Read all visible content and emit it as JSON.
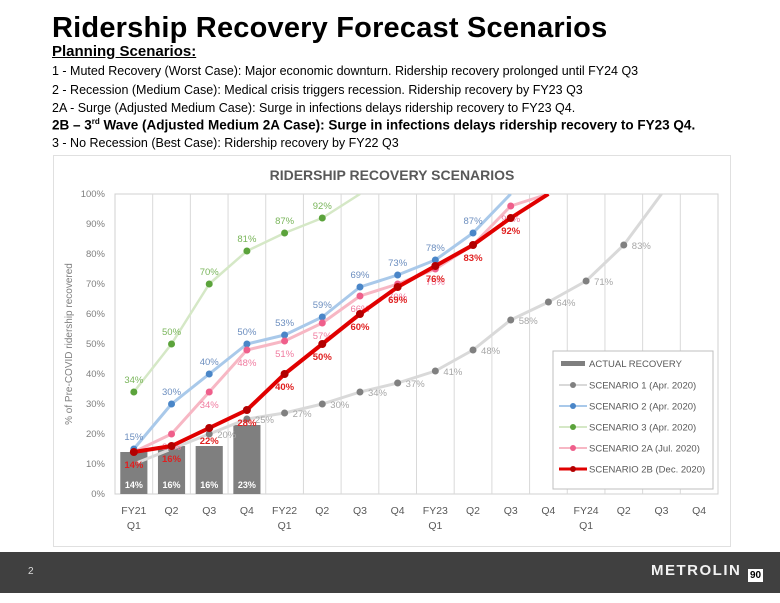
{
  "page": {
    "title": "Ridership Recovery Forecast Scenarios",
    "subtitle": "Planning Scenarios:",
    "scenarios": [
      {
        "text": "1 - Muted Recovery (Worst Case): Major economic downturn. Ridership recovery prolonged until FY24 Q3",
        "bold": false
      },
      {
        "text": "2 - Recession (Medium Case): Medical crisis triggers recession. Ridership recovery by FY23 Q3",
        "bold": false
      },
      {
        "text": "2A - Surge (Adjusted Medium Case): Surge in infections delays ridership recovery to FY23 Q4.",
        "bold": false
      },
      {
        "prefix": "2B – 3",
        "sup": "rd",
        "rest": " Wave (Adjusted Medium 2A Case): Surge in infections delays ridership recovery to FY23 Q4.",
        "bold": true
      },
      {
        "text": "3 - No Recession (Best Case): Ridership recovery by FY22 Q3",
        "bold": false
      }
    ],
    "footer": {
      "page_number": "2",
      "logo_text": "METROLIN",
      "logo_badge": "90"
    }
  },
  "chart_data": {
    "type": "line",
    "title": "RIDERSHIP RECOVERY SCENARIOS",
    "xlabel": "",
    "ylabel": "% of Pre-COVID ridership recovered",
    "ylim": [
      0,
      100
    ],
    "yticks": [
      "0%",
      "10%",
      "20%",
      "30%",
      "40%",
      "50%",
      "60%",
      "70%",
      "80%",
      "90%",
      "100%"
    ],
    "grid": "vertical",
    "legend_position": "bottom-right",
    "categories": [
      [
        "FY21",
        "Q1"
      ],
      [
        "Q2"
      ],
      [
        "Q3"
      ],
      [
        "Q4"
      ],
      [
        "FY22",
        "Q1"
      ],
      [
        "Q2"
      ],
      [
        "Q3"
      ],
      [
        "Q4"
      ],
      [
        "FY23",
        "Q1"
      ],
      [
        "Q2"
      ],
      [
        "Q3"
      ],
      [
        "Q4"
      ],
      [
        "FY24",
        "Q1"
      ],
      [
        "Q2"
      ],
      [
        "Q3"
      ],
      [
        "Q4"
      ]
    ],
    "bars": {
      "name": "ACTUAL RECOVERY",
      "color": "#7f7f7f",
      "values": [
        14,
        16,
        16,
        23
      ],
      "labels": [
        "14%",
        "16%",
        "16%",
        "23%"
      ]
    },
    "series": [
      {
        "name": "SCENARIO 1 (Apr. 2020)",
        "line_color": "#d9d9d9",
        "marker_color": "#808080",
        "label_color": "#a6a6a6",
        "width": 2,
        "values": [
          10,
          15,
          20,
          25,
          27,
          30,
          34,
          37,
          41,
          48,
          58,
          64,
          71,
          83,
          100,
          null
        ],
        "labels": [
          null,
          null,
          "20%",
          "25%",
          "27%",
          "30%",
          "34%",
          "37%",
          "41%",
          "48%",
          "58%",
          "64%",
          "71%",
          "83%",
          null,
          null
        ],
        "label_pos": "right"
      },
      {
        "name": "SCENARIO 2 (Apr. 2020)",
        "line_color": "#a9c9ea",
        "marker_color": "#4a86c8",
        "label_color": "#6c8ebf",
        "width": 2,
        "values": [
          15,
          30,
          40,
          50,
          53,
          59,
          69,
          73,
          78,
          87,
          100,
          null,
          null,
          null,
          null,
          null
        ],
        "labels": [
          "15%",
          "30%",
          "40%",
          "50%",
          "53%",
          "59%",
          "69%",
          "73%",
          "78%",
          "87%",
          null,
          null,
          null,
          null,
          null,
          null
        ],
        "label_pos": "above"
      },
      {
        "name": "SCENARIO 3 (Apr. 2020)",
        "line_color": "#d5e8c6",
        "marker_color": "#5ba33b",
        "label_color": "#79b55a",
        "width": 1.5,
        "values": [
          34,
          50,
          70,
          81,
          87,
          92,
          100,
          null,
          null,
          null,
          null,
          null,
          null,
          null,
          null,
          null
        ],
        "labels": [
          "34%",
          "50%",
          "70%",
          "81%",
          "87%",
          "92%",
          null,
          null,
          null,
          null,
          null,
          null,
          null,
          null,
          null,
          null
        ],
        "label_pos": "above"
      },
      {
        "name": "SCENARIO 2A (Jul. 2020)",
        "line_color": "#f7b7c4",
        "marker_color": "#ef5f8b",
        "label_color": "#f07ca0",
        "width": 2,
        "values": [
          14,
          20,
          34,
          48,
          51,
          57,
          66,
          70,
          75,
          83,
          96,
          100,
          null,
          null,
          null,
          null
        ],
        "labels": [
          null,
          "20%",
          "34%",
          "48%",
          "51%",
          "57%",
          "66%",
          "70%",
          "75%",
          null,
          "96%",
          null,
          null,
          null,
          null,
          null
        ],
        "label_pos": "below"
      },
      {
        "name": "SCENARIO 2B (Dec. 2020)",
        "line_color": "#e00000",
        "marker_color": "#b30000",
        "label_color": "#e02020",
        "width": 3,
        "values": [
          14,
          16,
          22,
          28,
          40,
          50,
          60,
          69,
          76,
          83,
          92,
          100,
          null,
          null,
          null,
          null
        ],
        "labels": [
          "14%",
          "16%",
          "22%",
          "28%",
          "40%",
          "50%",
          "60%",
          "69%",
          "76%",
          "83%",
          "92%",
          null,
          null,
          null,
          null,
          null
        ],
        "label_pos": "below"
      }
    ]
  }
}
